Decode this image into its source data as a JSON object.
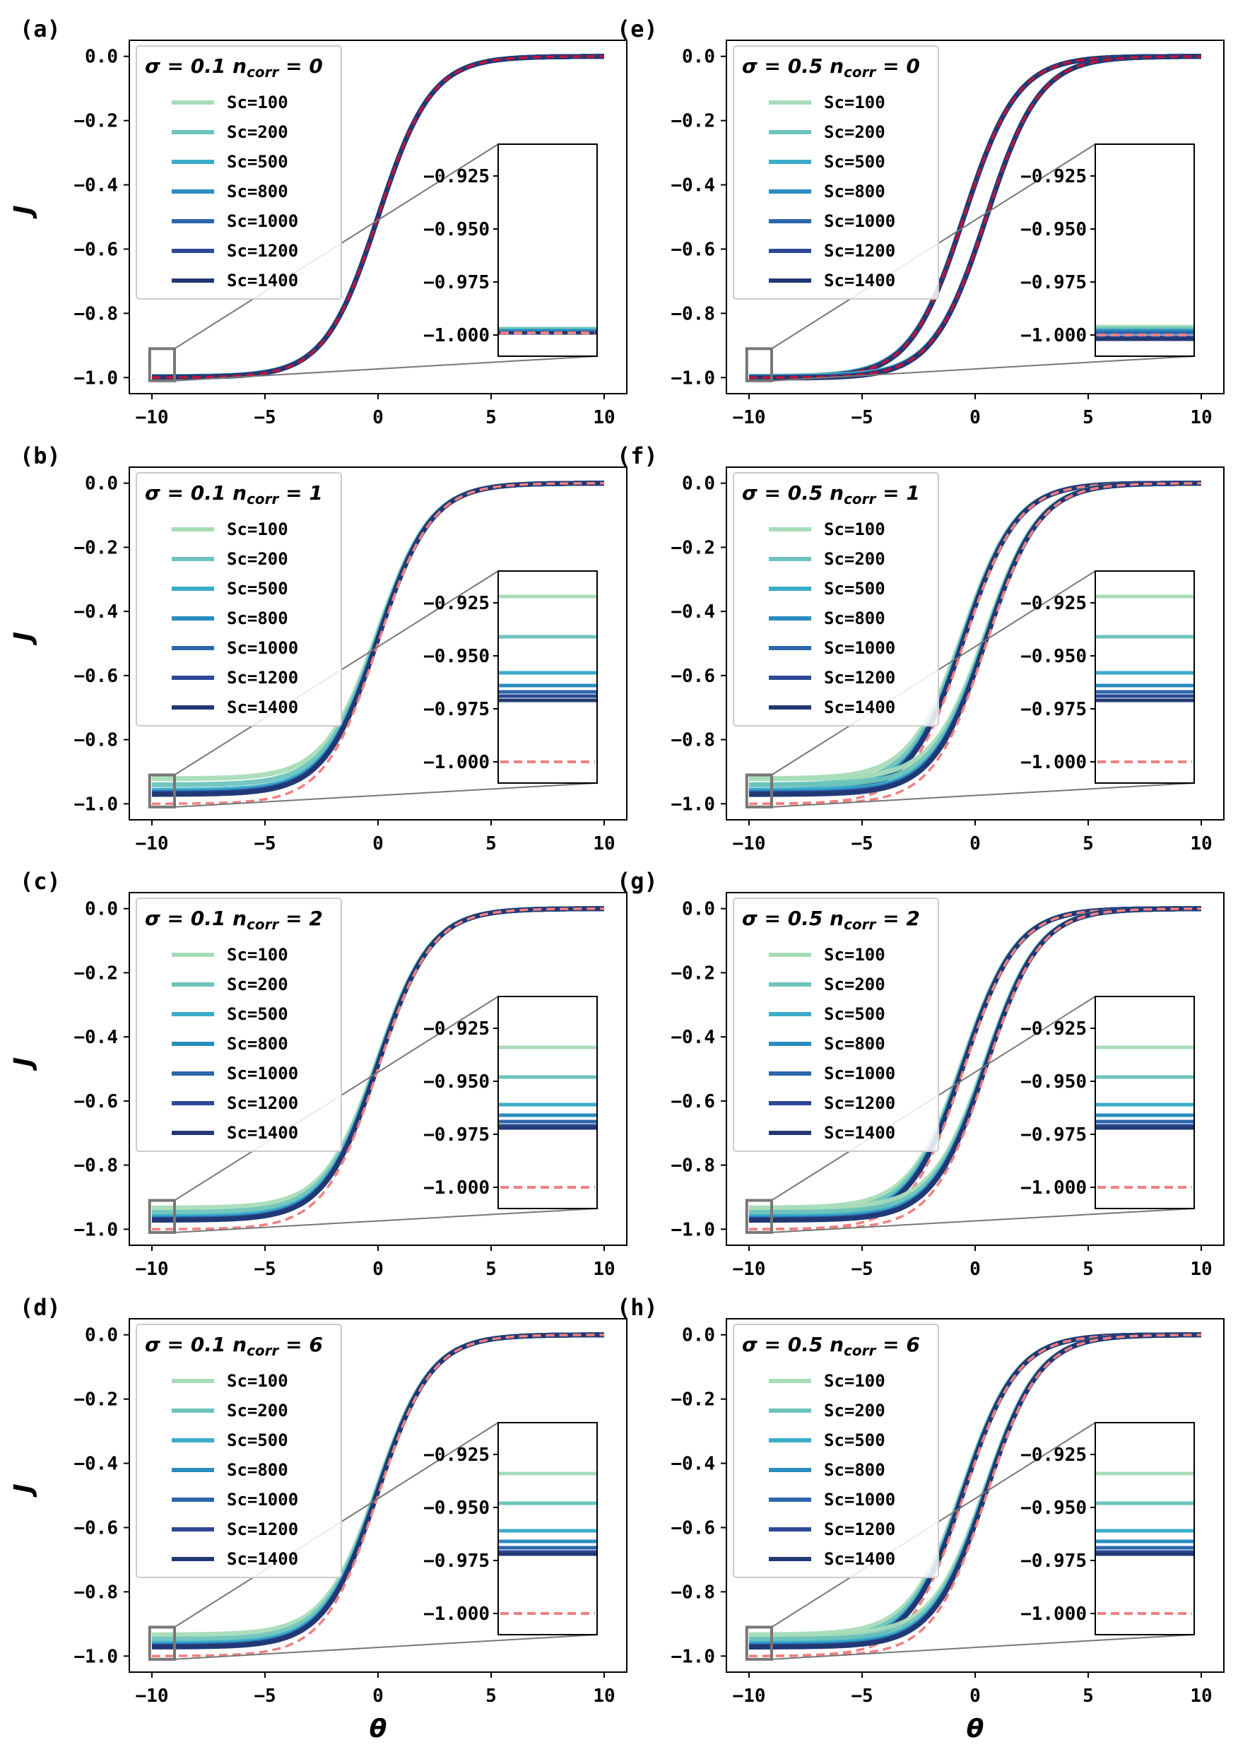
{
  "chart_data": [
    {
      "type": "line",
      "panel": "(a)",
      "sigma": "0.1",
      "ncorr": "0",
      "xlim": [
        -11,
        11
      ],
      "ylim": [
        -1.05,
        0.05
      ],
      "xticks": [
        -10,
        -5,
        0,
        5,
        10
      ],
      "yticks": [
        0.0,
        -0.2,
        -0.4,
        -0.6,
        -0.8,
        -1.0
      ],
      "inset": {
        "ylim": [
          -1.01,
          -0.91
        ],
        "yticks": [
          -0.925,
          -0.95,
          -0.975,
          -1.0
        ],
        "plateaus": [
          -0.997,
          -0.997,
          -0.998,
          -0.998,
          -0.999,
          -0.999,
          -0.999
        ],
        "ref": -0.999
      },
      "curves": [
        {
          "shift": 0,
          "low": -1.0
        }
      ],
      "ref_offset": 0.0
    },
    {
      "type": "line",
      "panel": "(b)",
      "sigma": "0.1",
      "ncorr": "1",
      "xlim": [
        -11,
        11
      ],
      "ylim": [
        -1.05,
        0.05
      ],
      "xticks": [
        -10,
        -5,
        0,
        5,
        10
      ],
      "yticks": [
        0.0,
        -0.2,
        -0.4,
        -0.6,
        -0.8,
        -1.0
      ],
      "inset": {
        "ylim": [
          -1.01,
          -0.91
        ],
        "yticks": [
          -0.925,
          -0.95,
          -0.975,
          -1.0
        ],
        "plateaus": [
          -0.922,
          -0.941,
          -0.958,
          -0.964,
          -0.967,
          -0.969,
          -0.971
        ],
        "ref": -1.0
      },
      "curves": [
        {
          "shift": 0,
          "low": -1.0
        }
      ],
      "ref_offset": 0.0
    },
    {
      "type": "line",
      "panel": "(c)",
      "sigma": "0.1",
      "ncorr": "2",
      "xlim": [
        -11,
        11
      ],
      "ylim": [
        -1.05,
        0.05
      ],
      "xticks": [
        -10,
        -5,
        0,
        5,
        10
      ],
      "yticks": [
        0.0,
        -0.2,
        -0.4,
        -0.6,
        -0.8,
        -1.0
      ],
      "inset": {
        "ylim": [
          -1.01,
          -0.91
        ],
        "yticks": [
          -0.925,
          -0.95,
          -0.975,
          -1.0
        ],
        "plateaus": [
          -0.934,
          -0.948,
          -0.961,
          -0.966,
          -0.969,
          -0.971,
          -0.972
        ],
        "ref": -1.0
      },
      "curves": [
        {
          "shift": 0,
          "low": -1.0
        }
      ],
      "ref_offset": 0.0
    },
    {
      "type": "line",
      "panel": "(d)",
      "sigma": "0.1",
      "ncorr": "6",
      "xlim": [
        -11,
        11
      ],
      "ylim": [
        -1.05,
        0.05
      ],
      "xticks": [
        -10,
        -5,
        0,
        5,
        10
      ],
      "yticks": [
        0.0,
        -0.2,
        -0.4,
        -0.6,
        -0.8,
        -1.0
      ],
      "inset": {
        "ylim": [
          -1.01,
          -0.91
        ],
        "yticks": [
          -0.925,
          -0.95,
          -0.975,
          -1.0
        ],
        "plateaus": [
          -0.934,
          -0.948,
          -0.961,
          -0.966,
          -0.969,
          -0.971,
          -0.972
        ],
        "ref": -1.0
      },
      "curves": [
        {
          "shift": 0,
          "low": -1.0
        }
      ],
      "ref_offset": 0.0
    },
    {
      "type": "line",
      "panel": "(e)",
      "sigma": "0.5",
      "ncorr": "0",
      "xlim": [
        -11,
        11
      ],
      "ylim": [
        -1.05,
        0.05
      ],
      "xticks": [
        -10,
        -5,
        0,
        5,
        10
      ],
      "yticks": [
        0.0,
        -0.2,
        -0.4,
        -0.6,
        -0.8,
        -1.0
      ],
      "inset": {
        "ylim": [
          -1.01,
          -0.91
        ],
        "yticks": [
          -0.925,
          -0.95,
          -0.975,
          -1.0
        ],
        "plateaus": [
          -0.996,
          -0.997,
          -0.998,
          -0.998,
          -0.999,
          -1.001,
          -1.002
        ],
        "ref": -1.0
      },
      "curves": [
        {
          "shift": -0.5,
          "low": -1.0
        },
        {
          "shift": 0.5,
          "low": -1.0
        }
      ],
      "ref_offset": 0.0
    },
    {
      "type": "line",
      "panel": "(f)",
      "sigma": "0.5",
      "ncorr": "1",
      "xlim": [
        -11,
        11
      ],
      "ylim": [
        -1.05,
        0.05
      ],
      "xticks": [
        -10,
        -5,
        0,
        5,
        10
      ],
      "yticks": [
        0.0,
        -0.2,
        -0.4,
        -0.6,
        -0.8,
        -1.0
      ],
      "inset": {
        "ylim": [
          -1.01,
          -0.91
        ],
        "yticks": [
          -0.925,
          -0.95,
          -0.975,
          -1.0
        ],
        "plateaus": [
          -0.922,
          -0.941,
          -0.958,
          -0.964,
          -0.967,
          -0.969,
          -0.971
        ],
        "ref": -1.0
      },
      "curves": [
        {
          "shift": -0.5,
          "low": -1.0
        },
        {
          "shift": 0.5,
          "low": -1.0
        }
      ],
      "ref_offset": 0.0
    },
    {
      "type": "line",
      "panel": "(g)",
      "sigma": "0.5",
      "ncorr": "2",
      "xlim": [
        -11,
        11
      ],
      "ylim": [
        -1.05,
        0.05
      ],
      "xticks": [
        -10,
        -5,
        0,
        5,
        10
      ],
      "yticks": [
        0.0,
        -0.2,
        -0.4,
        -0.6,
        -0.8,
        -1.0
      ],
      "inset": {
        "ylim": [
          -1.01,
          -0.91
        ],
        "yticks": [
          -0.925,
          -0.95,
          -0.975,
          -1.0
        ],
        "plateaus": [
          -0.934,
          -0.948,
          -0.961,
          -0.966,
          -0.969,
          -0.971,
          -0.972
        ],
        "ref": -1.0
      },
      "curves": [
        {
          "shift": -0.5,
          "low": -1.0
        },
        {
          "shift": 0.5,
          "low": -1.0
        }
      ],
      "ref_offset": 0.0
    },
    {
      "type": "line",
      "panel": "(h)",
      "sigma": "0.5",
      "ncorr": "6",
      "xlim": [
        -11,
        11
      ],
      "ylim": [
        -1.05,
        0.05
      ],
      "xticks": [
        -10,
        -5,
        0,
        5,
        10
      ],
      "yticks": [
        0.0,
        -0.2,
        -0.4,
        -0.6,
        -0.8,
        -1.0
      ],
      "inset": {
        "ylim": [
          -1.01,
          -0.91
        ],
        "yticks": [
          -0.925,
          -0.95,
          -0.975,
          -1.0
        ],
        "plateaus": [
          -0.934,
          -0.948,
          -0.961,
          -0.966,
          -0.969,
          -0.971,
          -0.972
        ],
        "ref": -1.0
      },
      "curves": [
        {
          "shift": -0.5,
          "low": -1.0
        },
        {
          "shift": 0.5,
          "low": -1.0
        }
      ],
      "ref_offset": 0.0
    }
  ],
  "series": [
    {
      "name": "Sc=100",
      "color": "#a8dcb8"
    },
    {
      "name": "Sc=200",
      "color": "#6cc4bc"
    },
    {
      "name": "Sc=500",
      "color": "#3aadc8"
    },
    {
      "name": "Sc=800",
      "color": "#2a8cc0"
    },
    {
      "name": "Sc=1000",
      "color": "#2c66ac"
    },
    {
      "name": "Sc=1200",
      "color": "#2c4896"
    },
    {
      "name": "Sc=1400",
      "color": "#213872"
    }
  ],
  "reference": {
    "color": "#f08080"
  },
  "overlay_color": "#c0143c",
  "ylabel": "J",
  "xlabel": "θ",
  "legend_title_prefix": "σ = ",
  "legend_title_mid": "n",
  "legend_title_sub": "corr",
  "legend_title_eq": " = "
}
